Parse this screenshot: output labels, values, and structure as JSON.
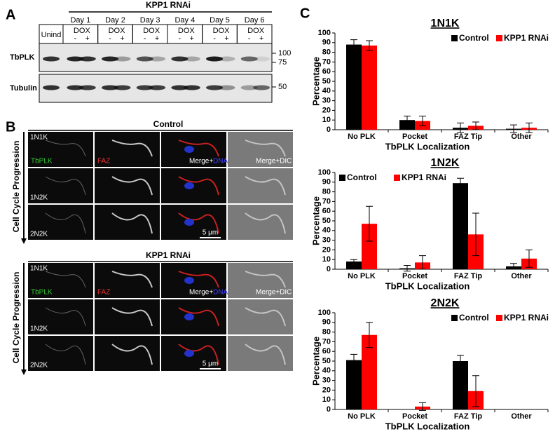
{
  "panel_a": {
    "label": "A",
    "title": "KPP1 RNAi",
    "unind": "Unind",
    "days": [
      "Day 1",
      "Day 2",
      "Day 3",
      "Day 4",
      "Day 5",
      "Day 6"
    ],
    "dox": "DOX",
    "minus": "-",
    "plus": "+",
    "rows": [
      "TbPLK",
      "Tubulin"
    ],
    "markers": [
      "100",
      "75",
      "50"
    ]
  },
  "panel_b": {
    "label": "B",
    "groups": [
      "Control",
      "KPP1 RNAi"
    ],
    "axis": "Cell Cycle Progression",
    "stages": [
      "1N1K",
      "1N2K",
      "2N2K"
    ],
    "channels": [
      "TbPLK",
      "FAZ",
      "Merge+",
      "DNA",
      "Merge+DIC"
    ],
    "scale": "5 μm"
  },
  "panel_c": {
    "label": "C"
  },
  "chart_data": [
    {
      "type": "bar",
      "title": "1N1K",
      "y_label": "Percentage",
      "x_label": "TbPLK Localization",
      "categories": [
        "No PLK",
        "Pocket",
        "FAZ Tip",
        "Other"
      ],
      "series": [
        {
          "name": "Control",
          "color": "#000000",
          "values": [
            88,
            10,
            2,
            1
          ],
          "errors": [
            5,
            4,
            5,
            4
          ]
        },
        {
          "name": "KPP1 RNAi",
          "color": "#ff0000",
          "values": [
            87,
            9,
            4,
            2
          ],
          "errors": [
            5,
            5,
            4,
            5
          ]
        }
      ],
      "ylim": [
        0,
        100
      ],
      "yticks": [
        0,
        10,
        20,
        30,
        40,
        50,
        60,
        70,
        80,
        90,
        100
      ],
      "legend": "top-right"
    },
    {
      "type": "bar",
      "title": "1N2K",
      "y_label": "Percentage",
      "x_label": "TbPLK Localization",
      "categories": [
        "No PLK",
        "Pocket",
        "FAZ Tip",
        "Other"
      ],
      "series": [
        {
          "name": "Control",
          "color": "#000000",
          "values": [
            8,
            1,
            89,
            3
          ],
          "errors": [
            2,
            3,
            5,
            3
          ]
        },
        {
          "name": "KPP1 RNAi",
          "color": "#ff0000",
          "values": [
            47,
            7,
            36,
            11
          ],
          "errors": [
            18,
            7,
            22,
            9
          ]
        }
      ],
      "ylim": [
        0,
        100
      ],
      "yticks": [
        0,
        10,
        20,
        30,
        40,
        50,
        60,
        70,
        80,
        90,
        100
      ],
      "legend": "top-left"
    },
    {
      "type": "bar",
      "title": "2N2K",
      "y_label": "Percentage",
      "x_label": "TbPLK Localization",
      "categories": [
        "No PLK",
        "Pocket",
        "FAZ Tip",
        "Other"
      ],
      "series": [
        {
          "name": "Control",
          "color": "#000000",
          "values": [
            51,
            0,
            50,
            0
          ],
          "errors": [
            6,
            0,
            6,
            0
          ]
        },
        {
          "name": "KPP1 RNAi",
          "color": "#ff0000",
          "values": [
            77,
            3,
            19,
            0
          ],
          "errors": [
            13,
            4,
            16,
            0
          ]
        }
      ],
      "ylim": [
        0,
        100
      ],
      "yticks": [
        0,
        10,
        20,
        30,
        40,
        50,
        60,
        70,
        80,
        90,
        100
      ],
      "legend": "top-right"
    }
  ]
}
